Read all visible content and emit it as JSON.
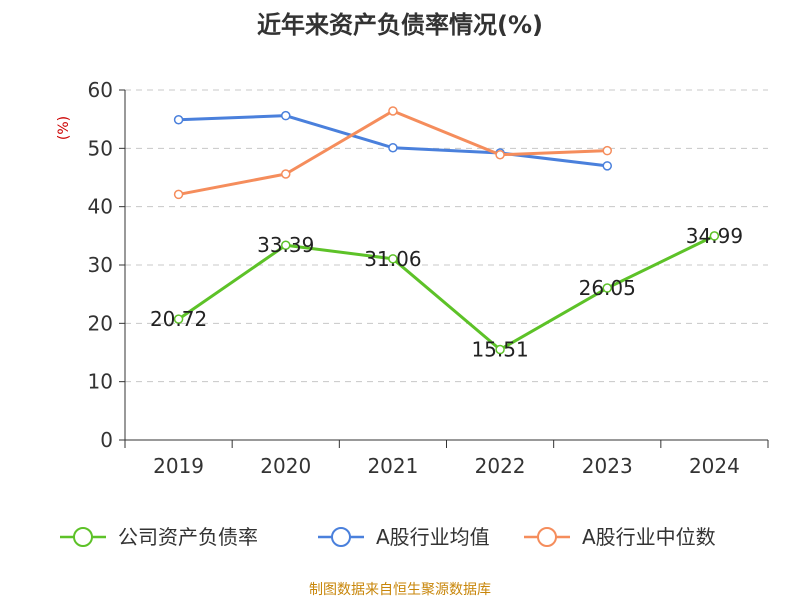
{
  "chart_data": {
    "type": "line",
    "title": "近年来资产负债率情况(%)",
    "ylabel": "(%)",
    "xlabel": "",
    "categories": [
      "2019",
      "2020",
      "2021",
      "2022",
      "2023",
      "2024"
    ],
    "ylim": [
      0,
      60
    ],
    "yticks": [
      "0",
      "10",
      "20",
      "30",
      "40",
      "50",
      "60"
    ],
    "grid": true,
    "legend_position": "bottom",
    "series": [
      {
        "name": "公司资产负债率",
        "color": "#5dc228",
        "values": [
          20.72,
          33.39,
          31.06,
          15.51,
          26.05,
          34.99
        ],
        "labels": [
          "20.72",
          "33.39",
          "31.06",
          "15.51",
          "26.05",
          "34.99"
        ]
      },
      {
        "name": "A股行业均值",
        "color": "#4a80dc",
        "values": [
          54.9,
          55.6,
          50.1,
          49.2,
          47.0,
          null
        ]
      },
      {
        "name": "A股行业中位数",
        "color": "#f58d5c",
        "values": [
          42.1,
          45.6,
          56.4,
          48.9,
          49.6,
          null
        ]
      }
    ]
  },
  "footer": {
    "source": "制图数据来自恒生聚源数据库"
  }
}
